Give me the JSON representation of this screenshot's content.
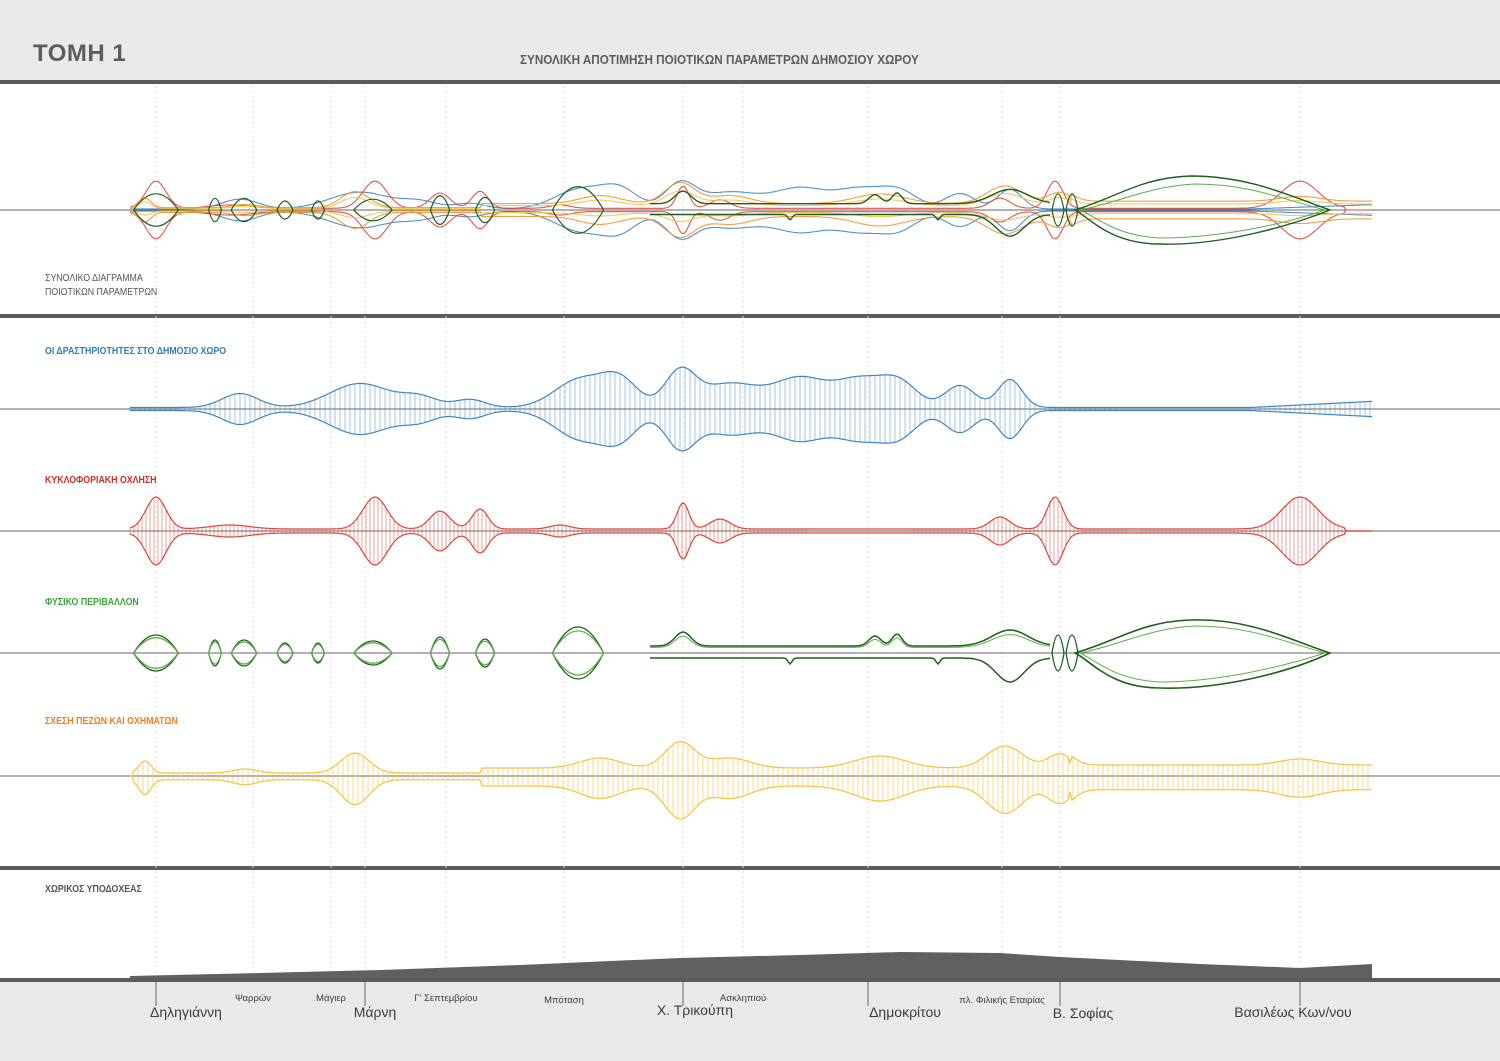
{
  "header": {
    "title": "ΤΟΜΗ 1",
    "subtitle": "ΣΥΝΟΛΙΚΗ ΑΠΟΤΙΜΗΣΗ  ΠΟΙΟΤΙΚΩΝ ΠΑΡΑΜΕΤΡΩΝ ΔΗΜΟΣΙΟΥ ΧΩΡΟΥ"
  },
  "overview": {
    "label_line1": "ΣΥΝΟΛΙΚΟ ΔΙΑΓΡΑΜΜΑ",
    "label_line2": "ΠΟΙΟΤΙΚΩΝ ΠΑΡΑΜΕΤΡΩΝ"
  },
  "sections": [
    {
      "label": "ΟΙ ΔΡΑΣΤΗΡΙΟΤΗΤΕΣ ΣΤΟ ΔΗΜΟΣΙΟ ΧΩΡΟ",
      "color": "#2f7fb8"
    },
    {
      "label": "ΚΥΚΛΟΦΟΡΙΑΚΗ ΟΧΛΗΣΗ",
      "color": "#d42a2a"
    },
    {
      "label": "ΦΥΣΙΚΟ ΠΕΡΙΒΑΛΛΟΝ",
      "color": "#3aa53a"
    },
    {
      "label": "ΣΧΕΣΗ ΠΕΖΩΝ ΚΑΙ ΟΧΗΜΑΤΩΝ",
      "color": "#f07f1a"
    }
  ],
  "stroke_colors": {
    "blue": "#3d86c6",
    "red": "#e0443a",
    "green_dark": "#1f5e1f",
    "green_light": "#5fae4a",
    "yellow": "#f2c443",
    "orange": "#f0952e"
  },
  "spatial": {
    "label": "ΧΩΡΙΚΟΣ ΥΠΟΔΟΧΕΑΣ",
    "fill": "#5f6062"
  },
  "streets": {
    "major": [
      "Δηληγιάννη",
      "Μάρνη",
      "Χ. Τρικούπη",
      "Δημοκρίτου",
      "Β. Σοφίας",
      "Βασιλέως Κων/νου"
    ],
    "minor": [
      "Ψαρρών",
      "Μάγιερ",
      "Γ' Σεπτεμβρίου",
      "Μπόταση",
      "Ασκληπιού",
      "πλ. Φιλικής Εταιρίας"
    ]
  }
}
